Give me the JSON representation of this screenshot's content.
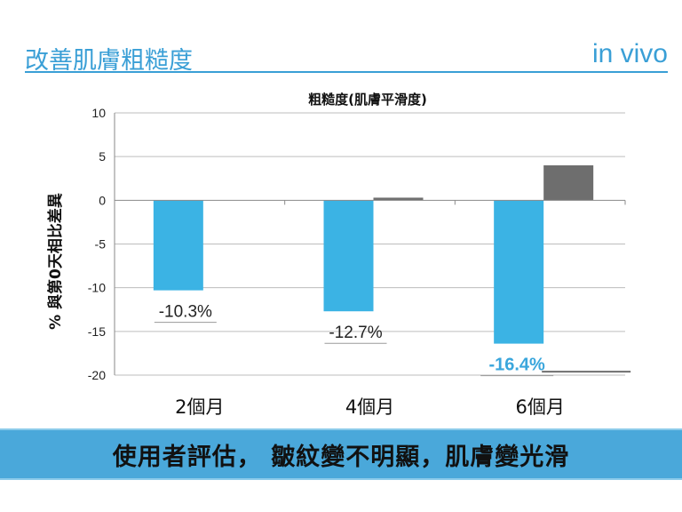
{
  "header": {
    "title": "改善肌膚粗糙度",
    "tag": "in vivo"
  },
  "colors": {
    "accent": "#3a9fd6",
    "primary_bar": "#3bb3e4",
    "secondary_bar": "#6e6e6e",
    "footer_band": "#4aa8da"
  },
  "chart_data": {
    "type": "bar",
    "title": "粗糙度(肌膚平滑度)",
    "xlabel": "",
    "ylabel": "% 與第0天相比差異",
    "ylim": [
      -20,
      10
    ],
    "yticks": [
      10,
      5,
      0,
      -5,
      -10,
      -15,
      -20
    ],
    "categories": [
      "2個月",
      "4個月",
      "6個月"
    ],
    "series": [
      {
        "values": [
          -10.3,
          -12.7,
          -16.4
        ],
        "labels": [
          "-10.3%",
          "-12.7%",
          "-16.4%"
        ],
        "color": "#3bb3e4"
      },
      {
        "values": [
          null,
          0.3,
          4.0
        ],
        "color": "#6e6e6e"
      }
    ]
  },
  "footer": {
    "text": "使用者評估， 皺紋變不明顯，肌膚變光滑"
  }
}
